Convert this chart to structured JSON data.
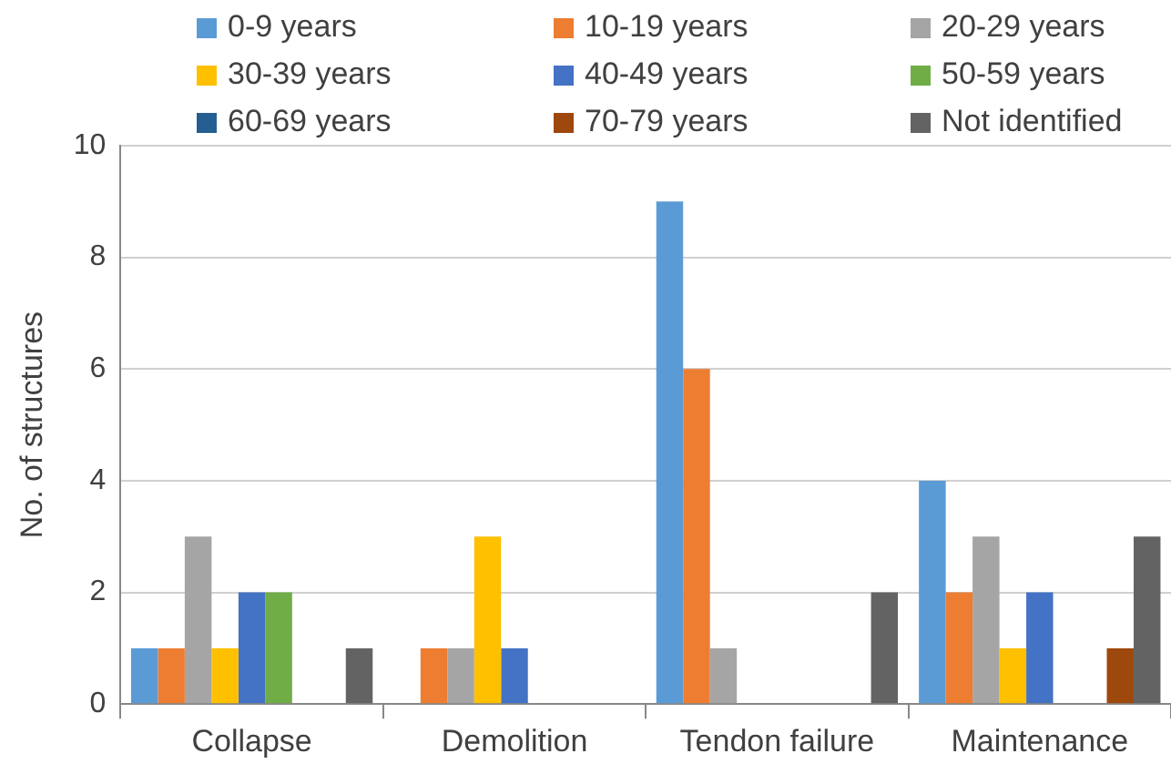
{
  "chart_data": {
    "type": "bar",
    "ylabel": "No. of structures",
    "categories": [
      "Collapse",
      "Demolition",
      "Tendon failure",
      "Maintenance"
    ],
    "series": [
      {
        "name": "0-9 years",
        "color": "#5b9bd5",
        "values": [
          1,
          0,
          9,
          4
        ]
      },
      {
        "name": "10-19 years",
        "color": "#ed7d31",
        "values": [
          1,
          1,
          6,
          2
        ]
      },
      {
        "name": "20-29 years",
        "color": "#a5a5a5",
        "values": [
          3,
          1,
          1,
          3
        ]
      },
      {
        "name": "30-39 years",
        "color": "#ffc000",
        "values": [
          1,
          3,
          0,
          1
        ]
      },
      {
        "name": "40-49 years",
        "color": "#4472c4",
        "values": [
          2,
          1,
          0,
          2
        ]
      },
      {
        "name": "50-59 years",
        "color": "#70ad47",
        "values": [
          2,
          0,
          0,
          0
        ]
      },
      {
        "name": "60-69 years",
        "color": "#255e91",
        "values": [
          0,
          0,
          0,
          0
        ]
      },
      {
        "name": "70-79 years",
        "color": "#9e480e",
        "values": [
          0,
          0,
          0,
          1
        ]
      },
      {
        "name": "Not identified",
        "color": "#636363",
        "values": [
          1,
          0,
          2,
          3
        ]
      }
    ],
    "ylim": [
      0,
      10
    ],
    "yticks": [
      0,
      2,
      4,
      6,
      8,
      10
    ],
    "grid": "y",
    "legend": "top"
  }
}
